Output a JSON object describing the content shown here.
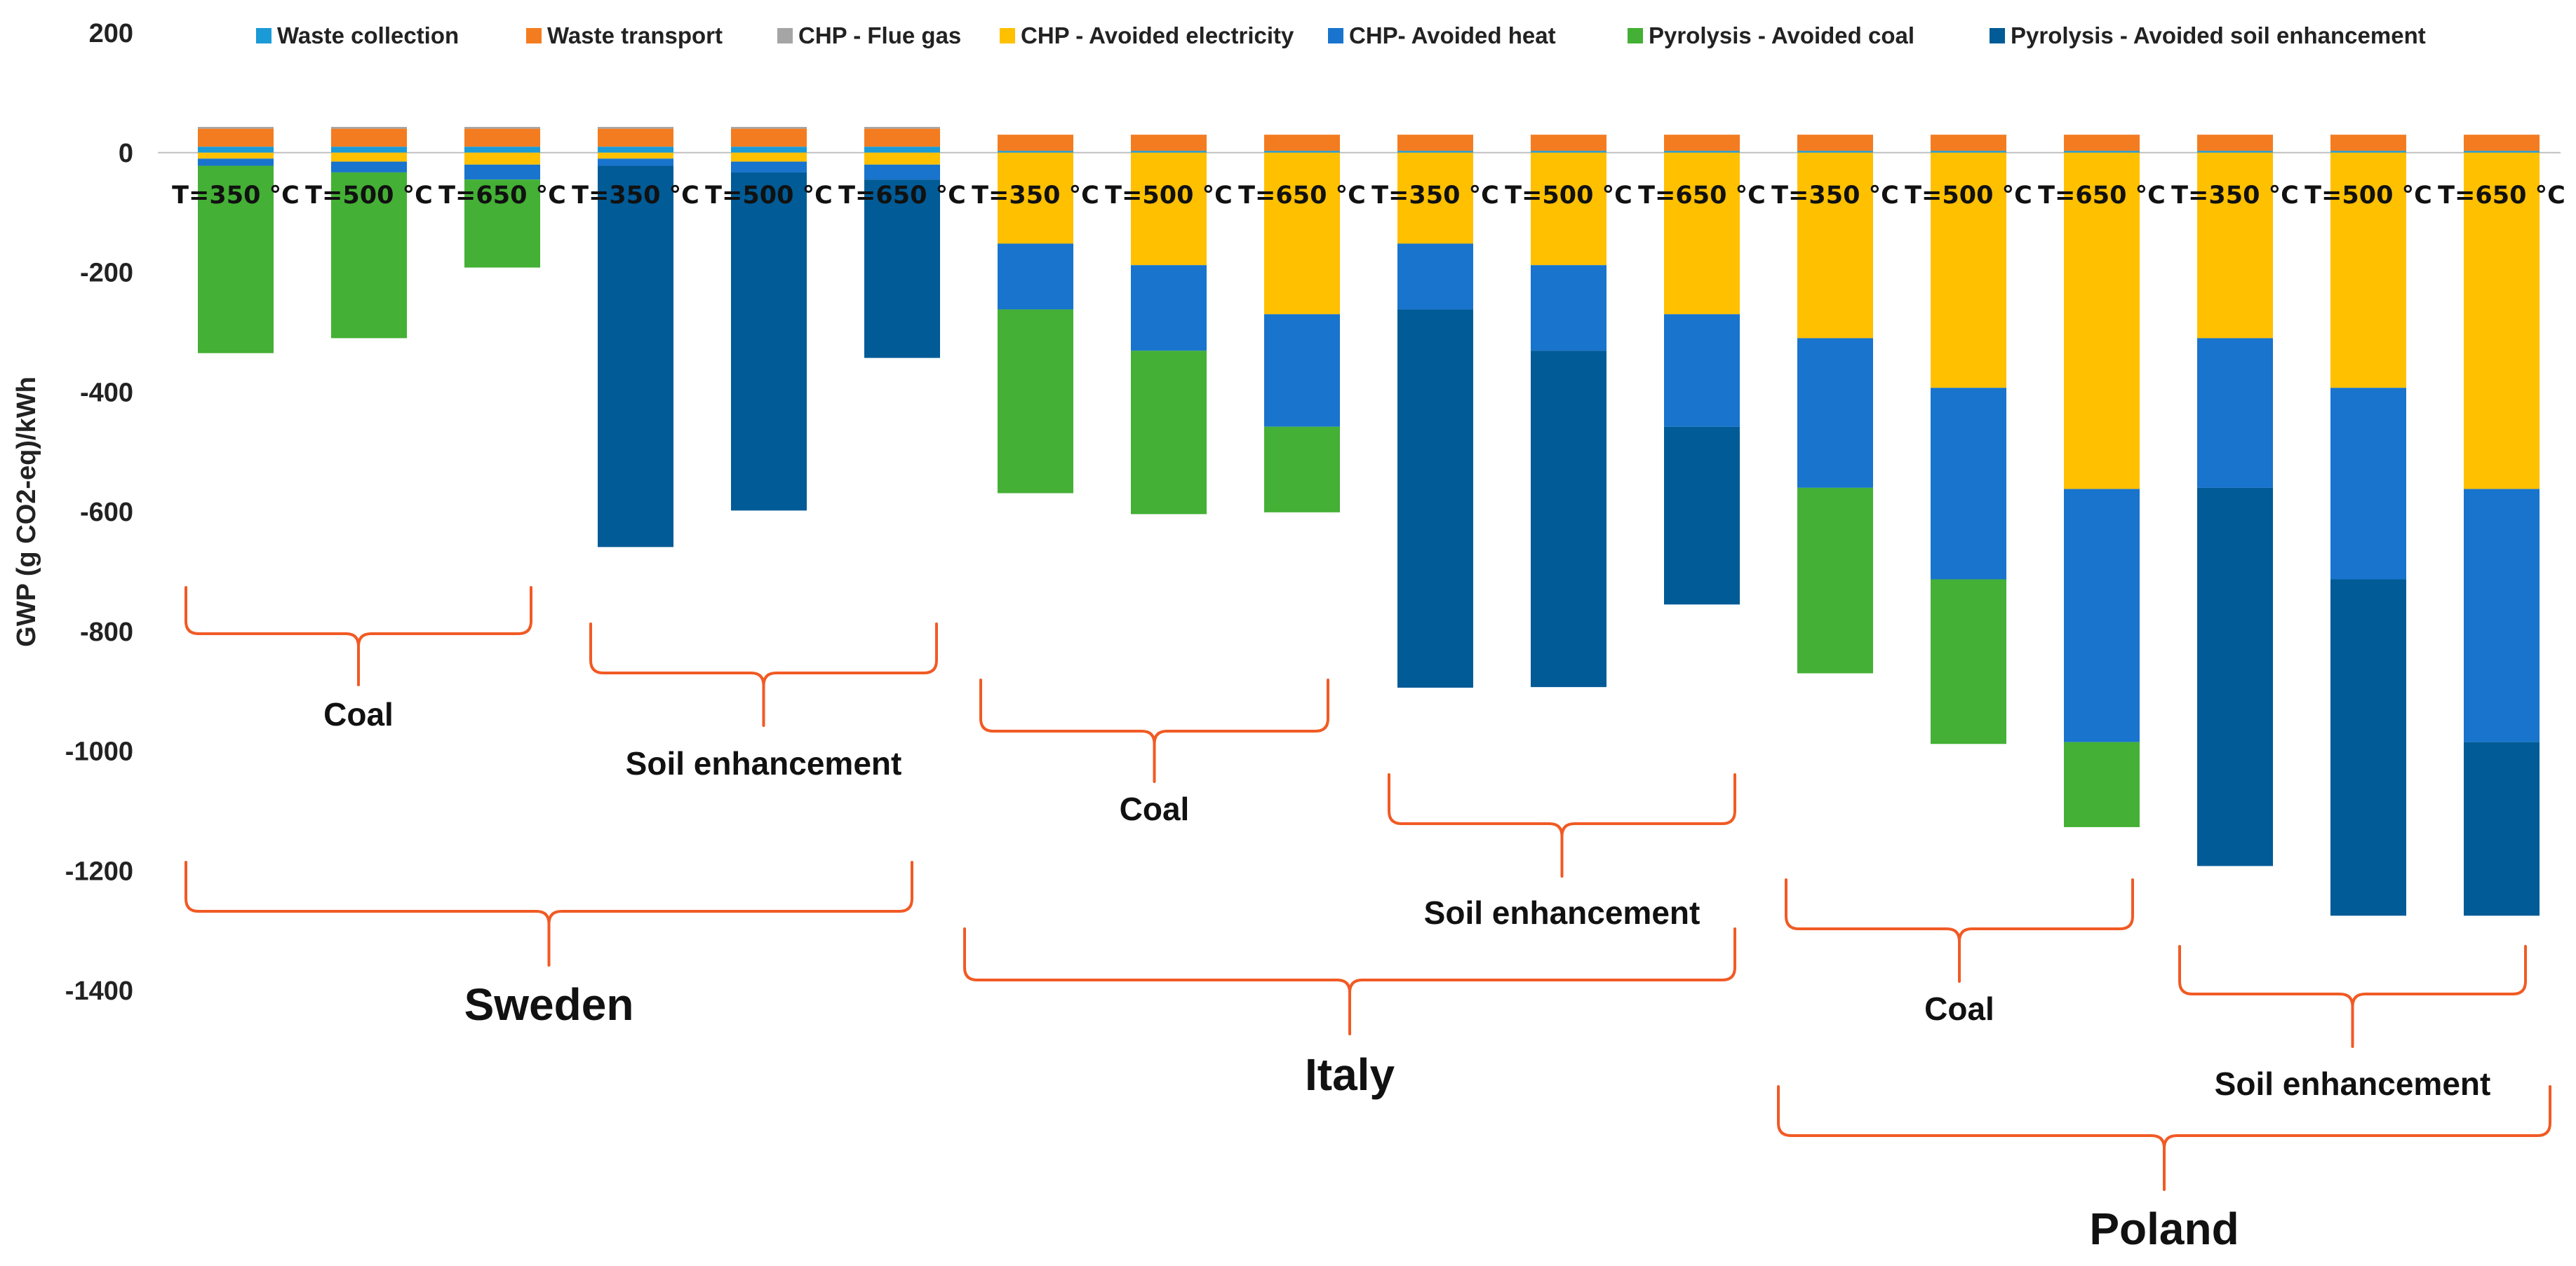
{
  "chart_data": {
    "type": "bar",
    "subtype": "stacked",
    "title": "",
    "xlabel": "",
    "ylabel": "GWP (g CO2-eq)/kWh",
    "ylim": [
      -1400,
      200
    ],
    "yticks": [
      200,
      0,
      -200,
      -400,
      -600,
      -800,
      -1000,
      -1200,
      -1400
    ],
    "grid": false,
    "legend_position": "top",
    "categories": [
      "T=350 °C",
      "T=500 °C",
      "T=650 °C",
      "T=350 °C",
      "T=500 °C",
      "T=650 °C",
      "T=350 °C",
      "T=500 °C",
      "T=650 °C",
      "T=350 °C",
      "T=500 °C",
      "T=650 °C",
      "T=350 °C",
      "T=500 °C",
      "T=650 °C",
      "T=350 °C",
      "T=500 °C",
      "T=650 °C"
    ],
    "series": [
      {
        "name": "Waste collection",
        "color": "#1a9ad6",
        "values": [
          10,
          10,
          10,
          10,
          10,
          10,
          3,
          3,
          3,
          3,
          3,
          3,
          3,
          3,
          3,
          3,
          3,
          3
        ]
      },
      {
        "name": "Waste transport",
        "color": "#f47c20",
        "values": [
          30,
          30,
          30,
          30,
          30,
          30,
          27,
          27,
          27,
          27,
          27,
          27,
          27,
          27,
          27,
          27,
          27,
          27
        ]
      },
      {
        "name": "CHP - Flue gas",
        "color": "#a5a5a5",
        "values": [
          3,
          3,
          3,
          3,
          3,
          3,
          0,
          0,
          0,
          0,
          0,
          0,
          0,
          0,
          0,
          0,
          0,
          0
        ]
      },
      {
        "name": "CHP - Avoided electricity",
        "color": "#ffc000",
        "values": [
          -10,
          -15,
          -20,
          -10,
          -15,
          -20,
          -152,
          -188,
          -270,
          -152,
          -188,
          -270,
          -310,
          -393,
          -562,
          -310,
          -393,
          -562
        ]
      },
      {
        "name": "CHP- Avoided heat",
        "color": "#1874cd",
        "values": [
          -12,
          -18,
          -25,
          -12,
          -18,
          -25,
          -110,
          -143,
          -188,
          -110,
          -143,
          -188,
          -250,
          -320,
          -423,
          -250,
          -320,
          -423
        ]
      },
      {
        "name": "Pyrolysis - Avoided coal",
        "color": "#44b035",
        "values": [
          -313,
          -277,
          -147,
          0,
          0,
          0,
          -307,
          -273,
          -143,
          0,
          0,
          0,
          -310,
          -275,
          -142,
          0,
          0,
          0
        ]
      },
      {
        "name": "Pyrolysis - Avoided soil enhancement",
        "color": "#005b96",
        "values": [
          0,
          0,
          0,
          -637,
          -565,
          -298,
          0,
          0,
          0,
          -632,
          -562,
          -297,
          0,
          0,
          0,
          -632,
          -562,
          -290
        ]
      }
    ],
    "group_labels": [
      {
        "label": "Coal",
        "level": "scenario",
        "from": 0,
        "to": 2
      },
      {
        "label": "Soil enhancement",
        "level": "scenario",
        "from": 3,
        "to": 5
      },
      {
        "label": "Coal",
        "level": "scenario",
        "from": 6,
        "to": 8
      },
      {
        "label": "Soil enhancement",
        "level": "scenario",
        "from": 9,
        "to": 11
      },
      {
        "label": "Coal",
        "level": "scenario",
        "from": 12,
        "to": 14
      },
      {
        "label": "Soil enhancement",
        "level": "scenario",
        "from": 15,
        "to": 17
      },
      {
        "label": "Sweden",
        "level": "country",
        "from": 0,
        "to": 5
      },
      {
        "label": "Italy",
        "level": "country",
        "from": 6,
        "to": 11
      },
      {
        "label": "Poland",
        "level": "country",
        "from": 12,
        "to": 17
      }
    ]
  }
}
